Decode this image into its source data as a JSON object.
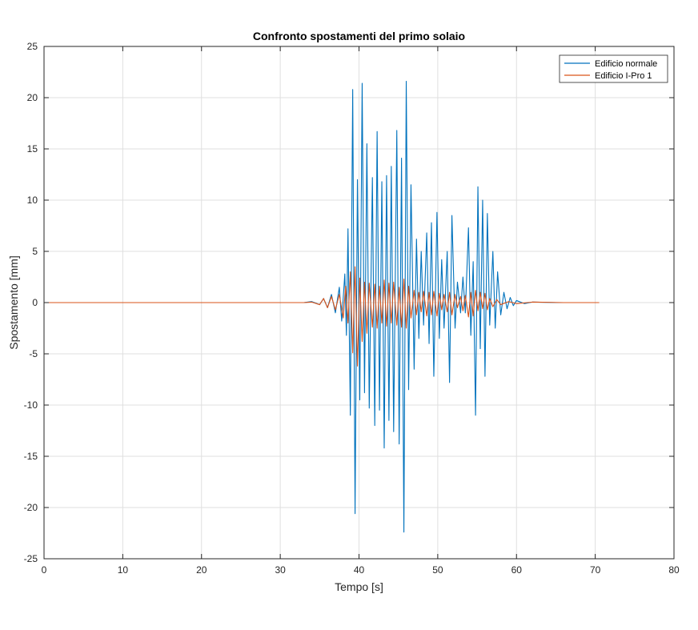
{
  "chart_data": {
    "type": "line",
    "title": "Confronto spostamenti del primo solaio",
    "xlabel": "Tempo [s]",
    "ylabel": "Spostamento [mm]",
    "xlim": [
      0,
      80
    ],
    "ylim": [
      -25,
      25
    ],
    "xticks": [
      0,
      10,
      20,
      30,
      40,
      50,
      60,
      70,
      80
    ],
    "yticks": [
      -25,
      -20,
      -15,
      -10,
      -5,
      0,
      5,
      10,
      15,
      20,
      25
    ],
    "grid": true,
    "legend_position": "top-right",
    "series": [
      {
        "name": "Edificio normale",
        "color": "#0072BD",
        "x": [
          0,
          33,
          34,
          35,
          35.5,
          36,
          36.5,
          37,
          37.5,
          37.8,
          38.2,
          38.4,
          38.6,
          38.9,
          39.2,
          39.5,
          39.8,
          40.1,
          40.4,
          40.7,
          41.0,
          41.3,
          41.7,
          42.0,
          42.3,
          42.6,
          42.9,
          43.2,
          43.5,
          43.8,
          44.1,
          44.4,
          44.8,
          45.1,
          45.4,
          45.7,
          46.0,
          46.3,
          46.6,
          47.0,
          47.3,
          47.6,
          47.9,
          48.2,
          48.6,
          48.9,
          49.2,
          49.5,
          49.9,
          50.2,
          50.5,
          50.8,
          51.2,
          51.5,
          51.8,
          52.2,
          52.5,
          52.9,
          53.2,
          53.5,
          53.9,
          54.2,
          54.5,
          54.8,
          55.1,
          55.4,
          55.7,
          56.0,
          56.3,
          56.6,
          57.0,
          57.3,
          57.6,
          58.0,
          58.4,
          58.8,
          59.2,
          59.6,
          60.0,
          61.0,
          62.0,
          65.0,
          70.0
        ],
        "values": [
          0,
          0,
          0.1,
          -0.2,
          0.4,
          -0.5,
          0.8,
          -1.0,
          1.5,
          -1.8,
          2.8,
          -3.2,
          7.2,
          -11.0,
          20.8,
          -20.6,
          12.0,
          -9.5,
          21.4,
          -8.8,
          15.5,
          -10.3,
          12.2,
          -12.0,
          16.7,
          -10.5,
          11.8,
          -14.2,
          12.4,
          -11.5,
          13.3,
          -12.6,
          16.8,
          -13.8,
          14.1,
          -22.4,
          21.6,
          -8.5,
          11.5,
          -6.5,
          6.2,
          -3.5,
          5.0,
          -2.2,
          6.8,
          -4.0,
          7.8,
          -7.2,
          8.8,
          -3.5,
          4.2,
          -2.5,
          5.0,
          -7.8,
          8.5,
          -2.5,
          2.0,
          -1.0,
          2.5,
          -1.0,
          7.3,
          -3.2,
          4.0,
          -11.0,
          11.3,
          -4.5,
          10.0,
          -7.2,
          8.7,
          -2.2,
          5.0,
          -2.5,
          3.0,
          -1.2,
          1.0,
          -0.6,
          0.5,
          -0.3,
          0.2,
          -0.1,
          0.05,
          0,
          0
        ]
      },
      {
        "name": "Edificio I-Pro 1",
        "color": "#D95319",
        "x": [
          0,
          33,
          34,
          35,
          35.5,
          36,
          36.5,
          37,
          37.5,
          38.0,
          38.3,
          38.6,
          38.9,
          39.2,
          39.5,
          39.8,
          40.1,
          40.4,
          40.7,
          41.0,
          41.3,
          41.7,
          42.0,
          42.3,
          42.6,
          42.9,
          43.2,
          43.5,
          43.8,
          44.1,
          44.4,
          44.8,
          45.1,
          45.4,
          45.7,
          46.0,
          46.3,
          46.6,
          47.0,
          47.3,
          47.6,
          47.9,
          48.2,
          48.6,
          48.9,
          49.2,
          49.5,
          49.9,
          50.2,
          50.5,
          50.8,
          51.2,
          51.5,
          51.8,
          52.2,
          52.5,
          52.9,
          53.2,
          53.5,
          53.9,
          54.2,
          54.5,
          54.8,
          55.1,
          55.4,
          55.7,
          56.0,
          56.3,
          56.6,
          57.0,
          57.5,
          58.0,
          59.0,
          60.0,
          62.0,
          66.0,
          70.5
        ],
        "values": [
          0,
          0,
          0.05,
          -0.2,
          0.4,
          -0.5,
          0.6,
          -0.7,
          0.8,
          -1.5,
          1.6,
          -2.0,
          3.0,
          -4.9,
          3.5,
          -6.2,
          2.4,
          -3.8,
          2.0,
          -3.0,
          1.9,
          -2.4,
          1.8,
          -2.5,
          1.6,
          -2.0,
          2.2,
          -2.3,
          1.9,
          -2.0,
          2.0,
          -2.2,
          1.5,
          -2.4,
          2.3,
          -2.5,
          1.6,
          -1.5,
          1.2,
          -1.2,
          1.0,
          -0.9,
          1.1,
          -1.3,
          1.0,
          -1.2,
          1.1,
          -1.3,
          0.9,
          -0.7,
          0.8,
          -0.9,
          1.0,
          -1.2,
          0.8,
          -0.5,
          0.6,
          -0.8,
          0.7,
          -1.4,
          1.0,
          -1.3,
          1.2,
          -0.8,
          1.0,
          -0.6,
          0.9,
          -0.7,
          0.4,
          -0.4,
          0.3,
          -0.2,
          0.1,
          -0.1,
          0.05,
          0,
          0
        ]
      }
    ]
  }
}
